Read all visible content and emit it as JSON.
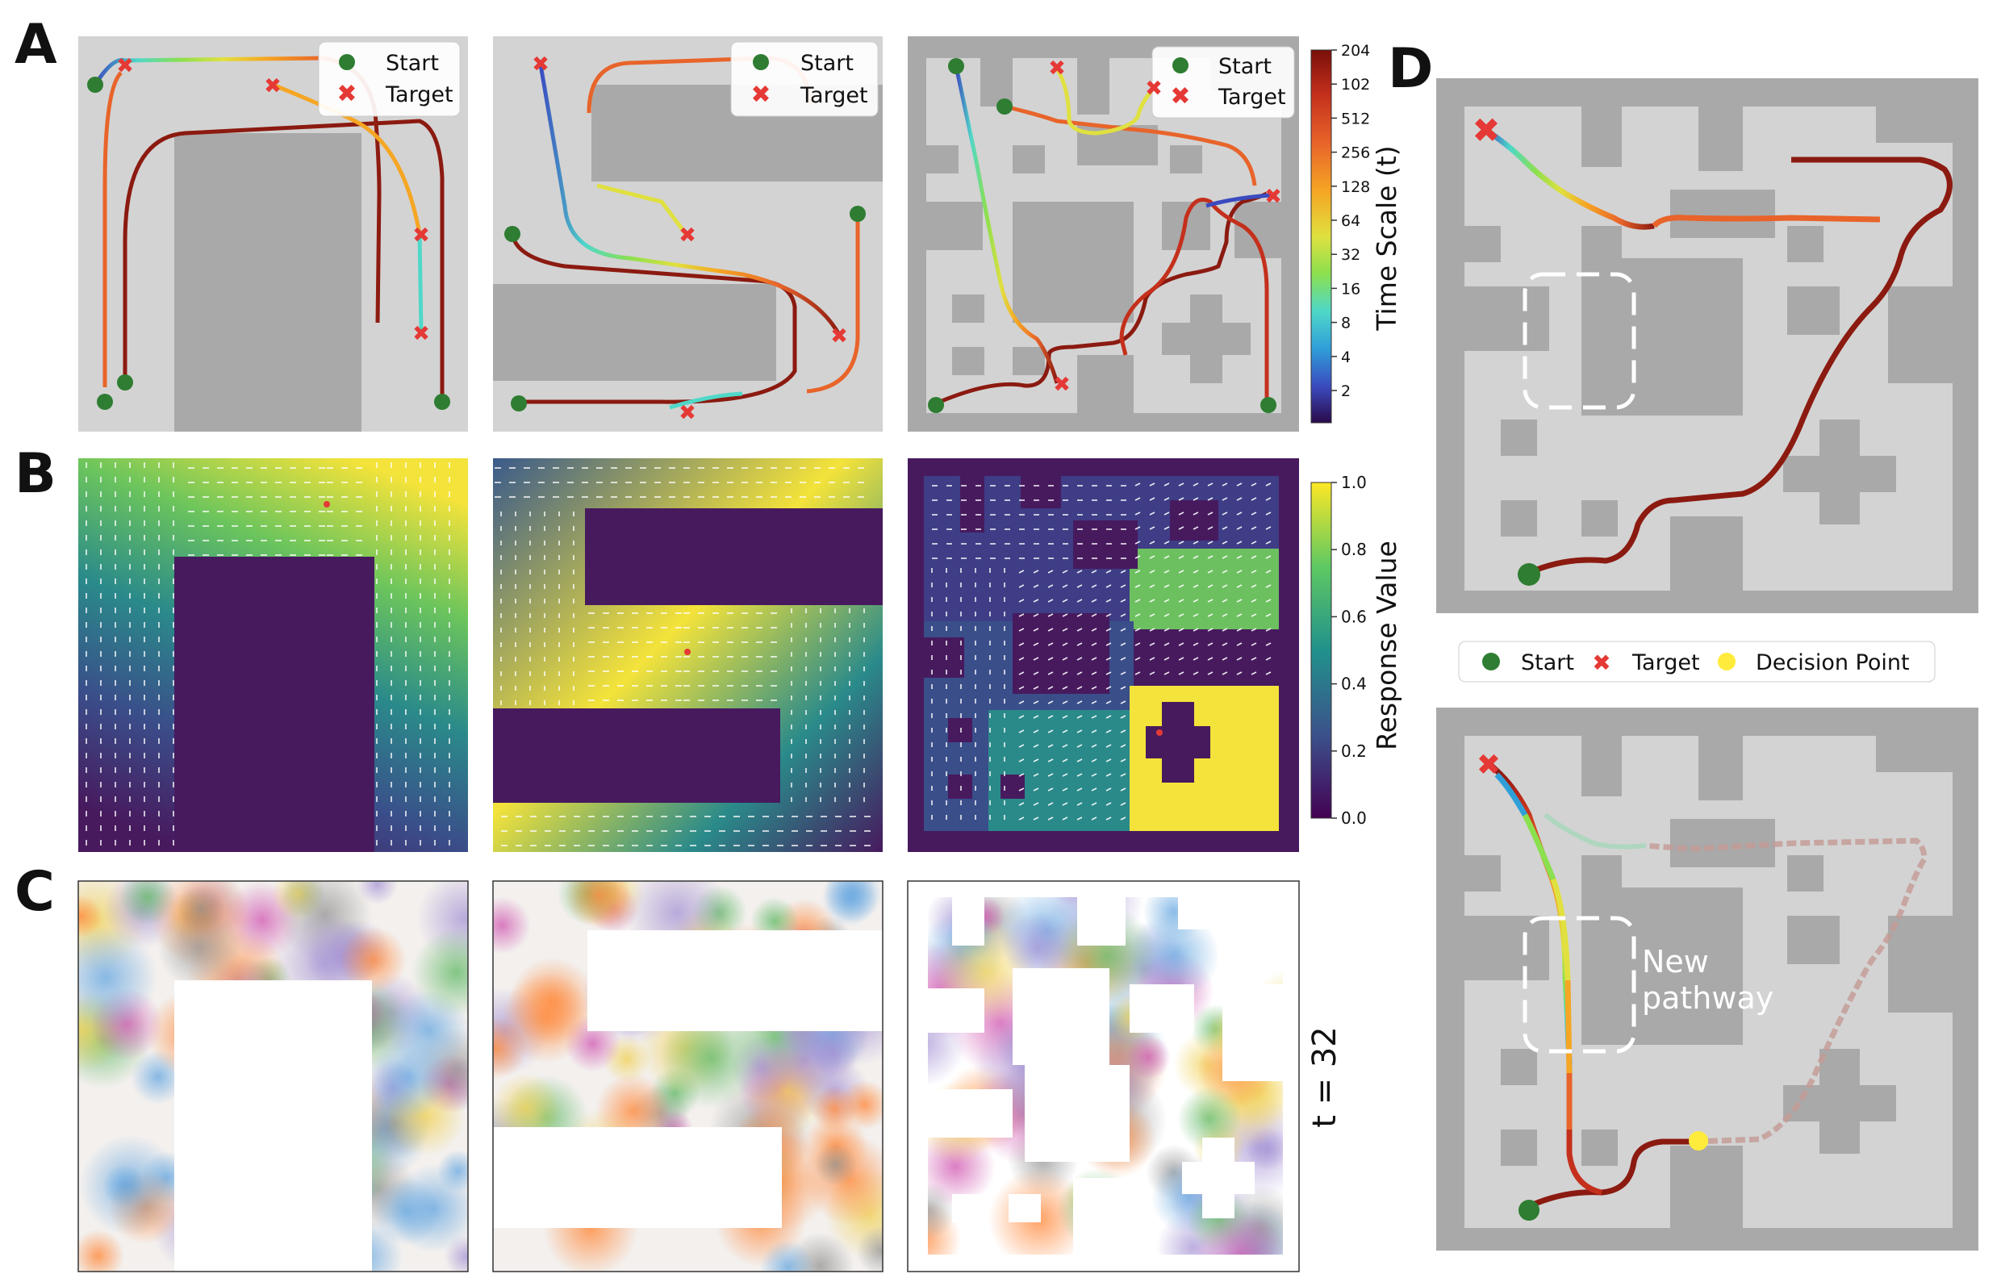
{
  "panel_labels": [
    "A",
    "B",
    "C",
    "D"
  ],
  "legend_a": {
    "start": "Start",
    "target": "Target"
  },
  "legend_d": {
    "start": "Start",
    "target": "Target",
    "decision": "Decision Point"
  },
  "timescale": {
    "title": "Time Scale (t)",
    "ticks": [
      "204",
      "102",
      "512",
      "256",
      "128",
      "64",
      "32",
      "16",
      "8",
      "4",
      "2"
    ]
  },
  "response": {
    "title": "Response Value",
    "ticks": [
      "1.0",
      "0.8",
      "0.6",
      "0.4",
      "0.2",
      "0.0"
    ]
  },
  "c_time_label": "t = 32",
  "annotation": {
    "line1": "New",
    "line2": "pathway"
  },
  "colors": {
    "floor": "#d3d3d3",
    "wall": "#a9a9a9",
    "start": "#2e7d32",
    "target": "#e53935",
    "decision": "#ffeb3b",
    "field_low": "#471a5e",
    "field_high": "#f5e642",
    "path_dark": "#8b1a10"
  }
}
